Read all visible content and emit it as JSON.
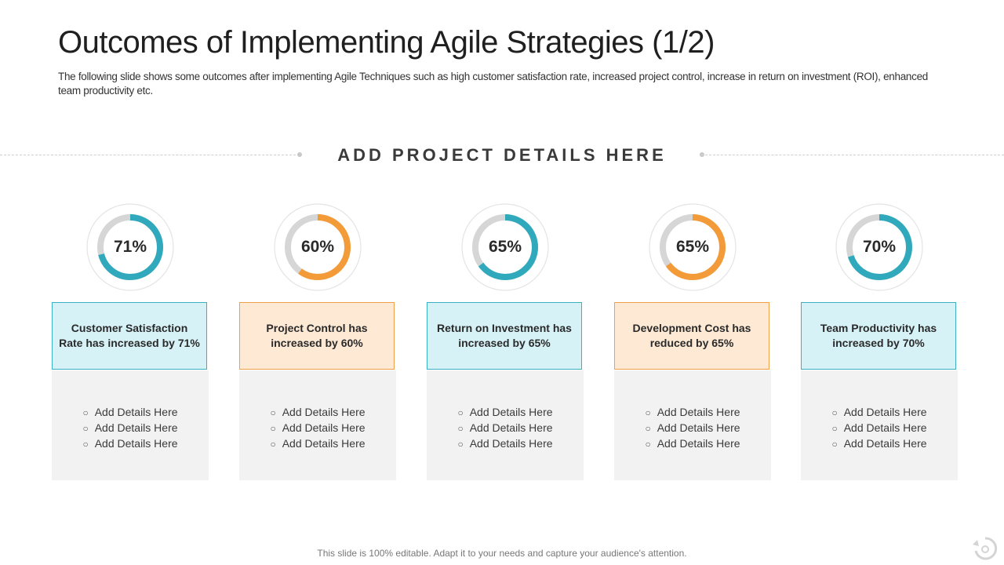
{
  "slide": {
    "title": "Outcomes of Implementing Agile Strategies (1/2)",
    "subtitle": "The following slide shows some outcomes after implementing Agile Techniques such as high customer satisfaction rate, increased project control, increase in return on investment (ROI), enhanced team productivity etc.",
    "section_heading": "ADD PROJECT DETAILS HERE",
    "footer": "This slide is 100% editable. Adapt it to your needs and capture your audience's attention."
  },
  "colors": {
    "teal": "#31a9bd",
    "orange": "#f39b39",
    "track": "#d6d6d6"
  },
  "cards": [
    {
      "percent_label": "71%",
      "value": 71,
      "accent": "teal",
      "heading": "Customer Satisfaction Rate has increased by 71%",
      "details": [
        "Add Details Here",
        "Add Details Here",
        "Add Details Here"
      ]
    },
    {
      "percent_label": "60%",
      "value": 60,
      "accent": "orange",
      "heading": "Project Control has increased by 60%",
      "details": [
        "Add Details Here",
        "Add Details Here",
        "Add Details Here"
      ]
    },
    {
      "percent_label": "65%",
      "value": 65,
      "accent": "teal",
      "heading": "Return on Investment has increased by 65%",
      "details": [
        "Add Details Here",
        "Add Details Here",
        "Add Details Here"
      ]
    },
    {
      "percent_label": "65%",
      "value": 65,
      "accent": "orange",
      "heading": "Development Cost has reduced by 65%",
      "details": [
        "Add Details Here",
        "Add Details Here",
        "Add Details Here"
      ]
    },
    {
      "percent_label": "70%",
      "value": 70,
      "accent": "teal",
      "heading": "Team Productivity has increased by 70%",
      "details": [
        "Add Details Here",
        "Add Details Here",
        "Add Details Here"
      ]
    }
  ]
}
